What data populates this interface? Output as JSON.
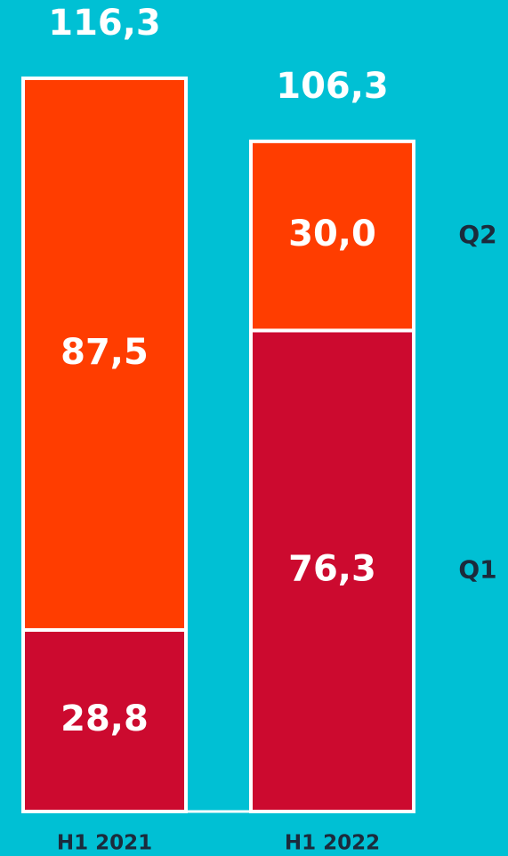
{
  "chart_data": {
    "type": "stacked_bar",
    "categories": [
      "H1 2021",
      "H1 2022"
    ],
    "series": [
      {
        "name": "Q1",
        "color": "#cc0a2f",
        "values": [
          28.8,
          76.3
        ],
        "value_labels": [
          "28,8",
          "76,3"
        ]
      },
      {
        "name": "Q2",
        "color": "#ff3d00",
        "values": [
          87.5,
          30.0
        ],
        "value_labels": [
          "87,5",
          "30,0"
        ]
      }
    ],
    "totals": [
      116.3,
      106.3
    ],
    "total_labels": [
      "116,3",
      "106,3"
    ]
  }
}
